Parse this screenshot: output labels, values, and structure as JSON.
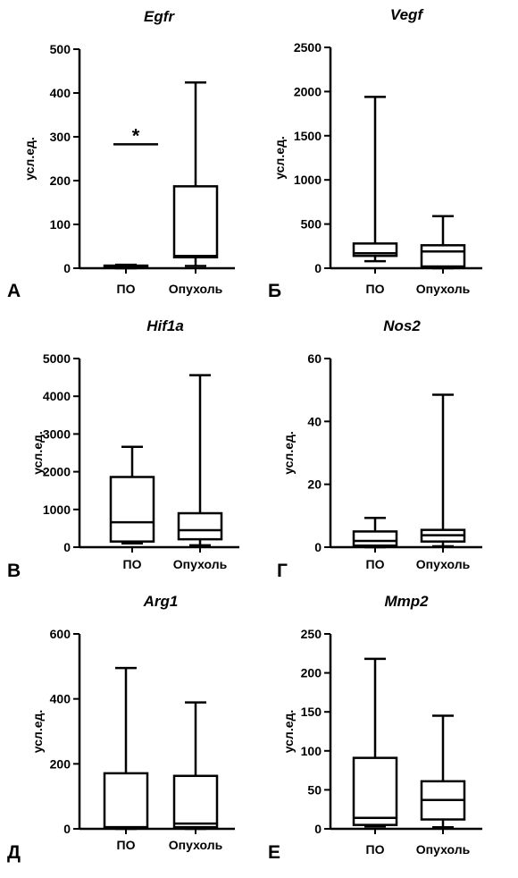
{
  "chart_data": [
    {
      "type": "box",
      "title": "Egfr",
      "panel_label": "А",
      "ylabel": "усл.ед.",
      "ylim": [
        0,
        500
      ],
      "yticks": [
        0,
        100,
        200,
        300,
        400,
        500
      ],
      "categories": [
        "ПО",
        "Опухоль"
      ],
      "boxes": [
        {
          "category": "ПО",
          "min": 0,
          "q1": 2,
          "median": 4,
          "q3": 6,
          "max": 8
        },
        {
          "category": "Опухоль",
          "min": 5,
          "q1": 25,
          "median": 28,
          "q3": 187,
          "max": 424
        }
      ],
      "annotation": {
        "text": "*",
        "y": 283
      }
    },
    {
      "type": "box",
      "title": "Vegf",
      "panel_label": "Б",
      "ylabel": "усл.ед.",
      "ylim": [
        0,
        2500
      ],
      "yticks": [
        0,
        500,
        1000,
        1500,
        2000,
        2500
      ],
      "categories": [
        "ПО",
        "Опухоль"
      ],
      "boxes": [
        {
          "category": "ПО",
          "min": 80,
          "q1": 140,
          "median": 170,
          "q3": 280,
          "max": 1940
        },
        {
          "category": "Опухоль",
          "min": 0,
          "q1": 20,
          "median": 190,
          "q3": 260,
          "max": 590
        }
      ]
    },
    {
      "type": "box",
      "title": "Hif1a",
      "panel_label": "В",
      "ylabel": "усл.ед.",
      "ylim": [
        0,
        5000
      ],
      "yticks": [
        0,
        1000,
        2000,
        3000,
        4000,
        5000
      ],
      "categories": [
        "ПО",
        "Опухоль"
      ],
      "boxes": [
        {
          "category": "ПО",
          "min": 100,
          "q1": 150,
          "median": 660,
          "q3": 1860,
          "max": 2660
        },
        {
          "category": "Опухоль",
          "min": 50,
          "q1": 210,
          "median": 450,
          "q3": 900,
          "max": 4560
        }
      ]
    },
    {
      "type": "box",
      "title": "Nos2",
      "panel_label": "Г",
      "ylabel": "усл.ед.",
      "ylim": [
        0,
        60
      ],
      "yticks": [
        0,
        20,
        40,
        60
      ],
      "categories": [
        "ПО",
        "Опухоль"
      ],
      "boxes": [
        {
          "category": "ПО",
          "min": 0,
          "q1": 0.5,
          "median": 2,
          "q3": 5,
          "max": 9.3
        },
        {
          "category": "Опухоль",
          "min": 0.3,
          "q1": 1.8,
          "median": 3.8,
          "q3": 5.5,
          "max": 48.5
        }
      ]
    },
    {
      "type": "box",
      "title": "Arg1",
      "panel_label": "Д",
      "ylabel": "усл.ед.",
      "ylim": [
        0,
        600
      ],
      "yticks": [
        0,
        200,
        400,
        600
      ],
      "categories": [
        "ПО",
        "Опухоль"
      ],
      "boxes": [
        {
          "category": "ПО",
          "min": 0,
          "q1": 2,
          "median": 5,
          "q3": 171,
          "max": 495
        },
        {
          "category": "Опухоль",
          "min": 0,
          "q1": 5,
          "median": 16,
          "q3": 163,
          "max": 389
        }
      ]
    },
    {
      "type": "box",
      "title": "Mmp2",
      "panel_label": "Е",
      "ylabel": "усл.ед.",
      "ylim": [
        0,
        250
      ],
      "yticks": [
        0,
        50,
        100,
        150,
        200,
        250
      ],
      "categories": [
        "ПО",
        "Опухоль"
      ],
      "boxes": [
        {
          "category": "ПО",
          "min": 3,
          "q1": 5,
          "median": 14,
          "q3": 91,
          "max": 218
        },
        {
          "category": "Опухоль",
          "min": 2,
          "q1": 12,
          "median": 37,
          "q3": 61,
          "max": 145
        }
      ]
    }
  ]
}
